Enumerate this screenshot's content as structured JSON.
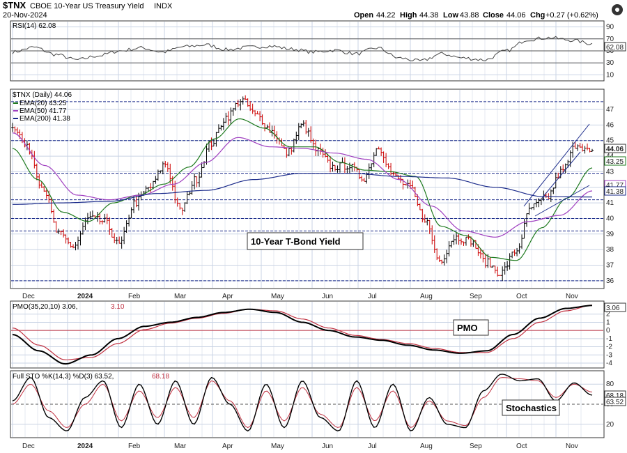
{
  "header": {
    "symbol": "$TNX",
    "name": "CBOE 10-Year US Treasury Yield",
    "exchange": "INDX",
    "date": "20-Nov-2024",
    "open_label": "Open",
    "open": "44.22",
    "high_label": "High",
    "high": "44.38",
    "low_label": "Low",
    "low": "43.88",
    "close_label": "Close",
    "close": "44.06",
    "chg_label": "Chg",
    "chg": "+0.27 (+0.62%)"
  },
  "colors": {
    "ema20": "#1e7a1e",
    "ema50": "#a040c0",
    "ema200": "#1a2a8a",
    "pmo_signal": "#c03040",
    "sto_d": "#c03040",
    "up_bar": "#000000",
    "down_bar": "#cc0000",
    "grid": "#c9d3e4",
    "dashed": "#1a2a8a"
  },
  "months": [
    {
      "label": "Dec",
      "bold": false
    },
    {
      "label": "2024",
      "bold": true
    },
    {
      "label": "Feb",
      "bold": false
    },
    {
      "label": "Mar",
      "bold": false
    },
    {
      "label": "Apr",
      "bold": false
    },
    {
      "label": "May",
      "bold": false
    },
    {
      "label": "Jun",
      "bold": false
    },
    {
      "label": "Jul",
      "bold": false
    },
    {
      "label": "Aug",
      "bold": false
    },
    {
      "label": "Sep",
      "bold": false
    },
    {
      "label": "Oct",
      "bold": false
    },
    {
      "label": "Nov",
      "bold": false
    }
  ],
  "rsi": {
    "legend": "RSI(14) 62.08",
    "value_badge": "62.08",
    "ticks": [
      "90",
      "70",
      "50",
      "30",
      "10"
    ],
    "tick_values": [
      90,
      70,
      50,
      30,
      10
    ],
    "ylim": [
      0,
      100
    ],
    "ref_lines": [
      70,
      50,
      30
    ]
  },
  "price": {
    "legend": "$TNX (Daily) 44.06",
    "ema20_legend": "EMA(20) 43.25",
    "ema50_legend": "EMA(50) 41.77",
    "ema200_legend": "EMA(200) 41.38",
    "badge_close": "44.06",
    "badge_ema20": "43.25",
    "badge_ema50": "41.77",
    "badge_ema200": "41.38",
    "ticks": [
      "47",
      "46",
      "45",
      "44",
      "43",
      "42",
      "41",
      "40",
      "39",
      "38",
      "37",
      "36"
    ],
    "tick_values": [
      47,
      46,
      45,
      44,
      43,
      42,
      41,
      40,
      39,
      38,
      37,
      36
    ],
    "ylim": [
      35.5,
      48.3
    ],
    "dashed_levels": [
      47.5,
      45,
      42.9,
      41.2,
      40,
      39.2,
      36
    ],
    "annotation": "10-Year T-Bond Yield"
  },
  "pmo": {
    "legend_prefix": "PMO(35,20,10) 3.06,",
    "legend_signal": "3.10",
    "value_badge": "3.06",
    "ticks": [
      "2",
      "1",
      "0",
      "-1",
      "-2",
      "-3",
      "-4"
    ],
    "tick_values": [
      2,
      1,
      0,
      -1,
      -2,
      -3,
      -4
    ],
    "ylim": [
      -4.6,
      3.6
    ],
    "annotation": "PMO"
  },
  "sto": {
    "legend_prefix": "Full STO %K(14,3) %D(3) 63.52,",
    "legend_d": "68.18",
    "badge_d": "68.18",
    "badge_k": "63.52",
    "ticks": [
      "80",
      "50",
      "20"
    ],
    "tick_values": [
      80,
      50,
      20
    ],
    "ylim": [
      0,
      100
    ],
    "annotation": "Stochastics"
  },
  "chart_data": {
    "type": "line",
    "title": "$TNX CBOE 10-Year US Treasury Yield INDX",
    "x": [
      "Dec",
      "2024",
      "Feb",
      "Mar",
      "Apr",
      "May",
      "Jun",
      "Jul",
      "Aug",
      "Sep",
      "Oct",
      "Nov"
    ],
    "price_anchors": [
      46,
      44.5,
      42,
      39,
      38.2,
      40,
      39.8,
      38.3,
      41,
      42,
      43.5,
      40.5,
      42.5,
      44.8,
      46.5,
      47.6,
      46.6,
      45.6,
      44.2,
      46,
      44.3,
      43.3,
      43.4,
      42.6,
      44.6,
      42.7,
      42,
      40,
      37.3,
      38.8,
      38.6,
      37.2,
      36.5,
      37.9,
      40.7,
      41.3,
      43,
      44.8,
      44.2
    ],
    "ema20_anchors": [
      44.5,
      42.5,
      40.4,
      39.8,
      41,
      41.5,
      42.2,
      43.3,
      45.1,
      46.4,
      45.8,
      44.6,
      44.6,
      43.6,
      43.1,
      43,
      42.7,
      39.5,
      38.9,
      37.5,
      37.3,
      39.4,
      41.3,
      43.25
    ],
    "ema50_anchors": [
      45.5,
      43.4,
      41.5,
      41.2,
      41.5,
      42.2,
      43.6,
      45.2,
      44.6,
      44.5,
      44.2,
      43.8,
      42.5,
      40.8,
      39.2,
      38.8,
      39.8,
      40.2,
      41.77
    ],
    "ema200_anchors": [
      40.9,
      41,
      41.1,
      41.6,
      41.8,
      42.5,
      42.9,
      42.9,
      42.7,
      42.6,
      42,
      41.4,
      41.38
    ],
    "rsi_anchors": [
      48,
      56,
      44,
      35,
      42,
      50,
      55,
      48,
      57,
      60,
      52,
      56,
      58,
      53,
      48,
      51,
      45,
      55,
      38,
      33,
      45,
      38,
      35,
      50,
      69,
      72,
      68,
      62
    ],
    "pmo_anchors": [
      -0.5,
      -2.5,
      -4.1,
      -3,
      -1,
      0.5,
      1,
      1.6,
      2.2,
      2.6,
      2.2,
      1,
      0,
      -0.8,
      -1.2,
      -1.8,
      -2.4,
      -2.8,
      -2.5,
      -0.5,
      1.5,
      2.7,
      3.06
    ],
    "pmo_signal_anchors": [
      0.3,
      -1.8,
      -3.6,
      -3.3,
      -1.6,
      0.1,
      0.9,
      1.5,
      2.1,
      2.6,
      2.4,
      1.4,
      0.3,
      -0.6,
      -1.1,
      -1.6,
      -2.2,
      -2.7,
      -2.7,
      -1,
      1,
      2.4,
      3.1
    ],
    "sto_k_anchors": [
      55,
      90,
      30,
      10,
      60,
      85,
      15,
      80,
      20,
      85,
      20,
      90,
      50,
      10,
      80,
      15,
      85,
      30,
      10,
      85,
      15,
      80,
      10,
      60,
      20,
      15,
      70,
      95,
      85,
      88,
      55,
      82,
      63.52
    ],
    "sto_d_anchors": [
      50,
      80,
      40,
      15,
      50,
      80,
      25,
      70,
      30,
      75,
      30,
      85,
      55,
      15,
      70,
      25,
      75,
      35,
      15,
      75,
      25,
      70,
      15,
      55,
      25,
      18,
      60,
      90,
      88,
      85,
      60,
      80,
      68.18
    ]
  }
}
